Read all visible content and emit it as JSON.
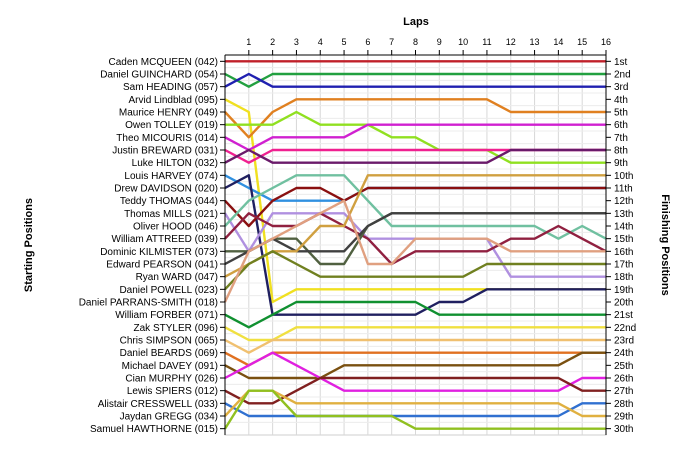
{
  "chart_data": {
    "type": "line",
    "title": "",
    "xlabel": "Laps",
    "ylabel_left": "Starting Positions",
    "ylabel_right": "Finishing Positions",
    "x": [
      0,
      1,
      2,
      3,
      4,
      5,
      6,
      7,
      8,
      9,
      10,
      11,
      12,
      13,
      14,
      15,
      16
    ],
    "x_tick_labels": [
      "1",
      "2",
      "3",
      "4",
      "5",
      "6",
      "7",
      "8",
      "9",
      "10",
      "11",
      "12",
      "13",
      "14",
      "15",
      "16"
    ],
    "finishing_labels": [
      "1st",
      "2nd",
      "3rd",
      "4th",
      "5th",
      "6th",
      "7th",
      "8th",
      "9th",
      "10th",
      "11th",
      "12th",
      "13th",
      "14th",
      "15th",
      "16th",
      "17th",
      "18th",
      "19th",
      "20th",
      "21st",
      "22nd",
      "23rd",
      "24th",
      "25th",
      "26th",
      "27th",
      "28th",
      "29th",
      "30th"
    ],
    "ylim": [
      1,
      30
    ],
    "grid": true,
    "series": [
      {
        "name": "Caden MCQUEEN (042)",
        "color": "#c0202a",
        "values": [
          1,
          1,
          1,
          1,
          1,
          1,
          1,
          1,
          1,
          1,
          1,
          1,
          1,
          1,
          1,
          1,
          1
        ]
      },
      {
        "name": "Daniel GUINCHARD (054)",
        "color": "#22a040",
        "values": [
          2,
          3,
          2,
          2,
          2,
          2,
          2,
          2,
          2,
          2,
          2,
          2,
          2,
          2,
          2,
          2,
          2
        ]
      },
      {
        "name": "Sam HEADING (057)",
        "color": "#2020b0",
        "values": [
          3,
          2,
          3,
          3,
          3,
          3,
          3,
          3,
          3,
          3,
          3,
          3,
          3,
          3,
          3,
          3,
          3
        ]
      },
      {
        "name": "Arvid Lindblad (095)",
        "color": "#f0e020",
        "values": [
          4,
          5,
          20,
          19,
          19,
          19,
          19,
          19,
          19,
          19,
          19,
          19,
          19,
          19,
          19,
          19,
          19
        ]
      },
      {
        "name": "Maurice HENRY (049)",
        "color": "#e08020",
        "values": [
          5,
          7,
          5,
          4,
          4,
          4,
          4,
          4,
          4,
          4,
          4,
          4,
          5,
          5,
          5,
          5,
          5
        ]
      },
      {
        "name": "Owen TOLLEY (019)",
        "color": "#90e020",
        "values": [
          6,
          6,
          6,
          5,
          6,
          6,
          6,
          7,
          7,
          8,
          8,
          8,
          9,
          9,
          9,
          9,
          9
        ]
      },
      {
        "name": "Theo MICOURIS (014)",
        "color": "#d020d0",
        "values": [
          7,
          8,
          7,
          7,
          7,
          7,
          6,
          6,
          6,
          6,
          6,
          6,
          6,
          6,
          6,
          6,
          6
        ]
      },
      {
        "name": "Justin BREWARD (031)",
        "color": "#f02090",
        "values": [
          8,
          9,
          8,
          8,
          8,
          8,
          8,
          8,
          8,
          8,
          8,
          8,
          8,
          8,
          8,
          8,
          8
        ]
      },
      {
        "name": "Luke HILTON (032)",
        "color": "#6a1a6a",
        "values": [
          9,
          8,
          9,
          9,
          9,
          9,
          9,
          9,
          9,
          9,
          9,
          9,
          8,
          8,
          8,
          8,
          8
        ]
      },
      {
        "name": "Louis HARVEY (074)",
        "color": "#3090e0",
        "values": [
          10,
          11,
          12,
          12,
          12,
          12,
          11,
          11,
          11,
          11,
          11,
          11,
          11,
          11,
          11,
          11,
          11
        ]
      },
      {
        "name": "Drew DAVIDSON (020)",
        "color": "#202060",
        "values": [
          11,
          10,
          21,
          21,
          21,
          21,
          21,
          21,
          21,
          20,
          20,
          19,
          19,
          19,
          19,
          19,
          19
        ]
      },
      {
        "name": "Teddy THOMAS (044)",
        "color": "#8a1010",
        "values": [
          12,
          14,
          12,
          11,
          11,
          12,
          11,
          11,
          11,
          11,
          11,
          11,
          11,
          11,
          11,
          11,
          11
        ]
      },
      {
        "name": "Thomas MILLS (021)",
        "color": "#b090e0",
        "values": [
          13,
          16,
          13,
          13,
          13,
          13,
          15,
          15,
          15,
          15,
          15,
          15,
          18,
          18,
          18,
          18,
          18
        ]
      },
      {
        "name": "Oliver HOOD (046)",
        "color": "#70c0a0",
        "values": [
          14,
          12,
          11,
          10,
          10,
          10,
          12,
          14,
          14,
          14,
          14,
          14,
          14,
          14,
          15,
          14,
          15
        ]
      },
      {
        "name": "William ATTREED (039)",
        "color": "#902040",
        "values": [
          15,
          13,
          14,
          14,
          13,
          14,
          15,
          17,
          16,
          16,
          16,
          16,
          15,
          15,
          14,
          15,
          16
        ]
      },
      {
        "name": "Dominic KILMISTER (073)",
        "color": "#506040",
        "values": [
          16,
          16,
          15,
          15,
          17,
          17,
          14,
          13,
          13,
          13,
          13,
          13,
          13,
          13,
          13,
          13,
          13
        ]
      },
      {
        "name": "Edward PEARSON (041)",
        "color": "#404040",
        "values": [
          17,
          16,
          15,
          16,
          16,
          16,
          14,
          13,
          13,
          13,
          13,
          13,
          13,
          13,
          13,
          13,
          13
        ]
      },
      {
        "name": "Ryan WARD (047)",
        "color": "#d0a040",
        "values": [
          18,
          17,
          16,
          16,
          14,
          14,
          10,
          10,
          10,
          10,
          10,
          10,
          10,
          10,
          10,
          10,
          10
        ]
      },
      {
        "name": "Daniel POWELL (023)",
        "color": "#708020",
        "values": [
          19,
          17,
          16,
          17,
          18,
          18,
          18,
          18,
          18,
          18,
          18,
          17,
          17,
          17,
          17,
          17,
          17
        ]
      },
      {
        "name": "Daniel PARRANS-SMITH (018)",
        "color": "#e0a080",
        "values": [
          20,
          16,
          15,
          14,
          13,
          12,
          17,
          17,
          15,
          15,
          15,
          15,
          16,
          16,
          16,
          16,
          16
        ]
      },
      {
        "name": "William FORBER (071)",
        "color": "#109030",
        "values": [
          21,
          22,
          21,
          20,
          20,
          20,
          20,
          20,
          20,
          21,
          21,
          21,
          21,
          21,
          21,
          21,
          21
        ]
      },
      {
        "name": "Zak STYLER (096)",
        "color": "#f0e040",
        "values": [
          22,
          23,
          23,
          22,
          22,
          22,
          22,
          22,
          22,
          22,
          22,
          22,
          22,
          22,
          22,
          22,
          22
        ]
      },
      {
        "name": "Chris SIMPSON (065)",
        "color": "#f0c070",
        "values": [
          23,
          24,
          23,
          23,
          23,
          23,
          23,
          23,
          23,
          23,
          23,
          23,
          23,
          23,
          23,
          23,
          23
        ]
      },
      {
        "name": "Daniel BEARDS (069)",
        "color": "#e07020",
        "values": [
          24,
          25,
          24,
          24,
          24,
          24,
          24,
          24,
          24,
          24,
          24,
          24,
          24,
          24,
          24,
          24,
          24
        ]
      },
      {
        "name": "Michael DAVEY (091)",
        "color": "#7a5010",
        "values": [
          25,
          26,
          26,
          26,
          26,
          25,
          25,
          25,
          25,
          25,
          25,
          25,
          25,
          25,
          25,
          24,
          24
        ]
      },
      {
        "name": "Cian MURPHY (026)",
        "color": "#e020e0",
        "values": [
          26,
          25,
          24,
          25,
          26,
          27,
          27,
          27,
          27,
          27,
          27,
          27,
          27,
          27,
          27,
          26,
          26
        ]
      },
      {
        "name": "Lewis SPIERS (012)",
        "color": "#802020",
        "values": [
          27,
          28,
          28,
          27,
          26,
          26,
          26,
          26,
          26,
          26,
          26,
          26,
          26,
          26,
          26,
          27,
          27
        ]
      },
      {
        "name": "Alistair CRESSWELL (033)",
        "color": "#3070d0",
        "values": [
          28,
          29,
          29,
          29,
          29,
          29,
          29,
          29,
          29,
          29,
          29,
          29,
          29,
          29,
          29,
          28,
          28
        ]
      },
      {
        "name": "Jaydan GREGG (034)",
        "color": "#e0b040",
        "values": [
          29,
          27,
          27,
          28,
          28,
          28,
          28,
          28,
          28,
          28,
          28,
          28,
          28,
          28,
          28,
          29,
          29
        ]
      },
      {
        "name": "Samuel HAWTHORNE (015)",
        "color": "#90c020",
        "values": [
          30,
          27,
          27,
          29,
          29,
          29,
          29,
          29,
          30,
          30,
          30,
          30,
          30,
          30,
          30,
          30,
          30
        ]
      }
    ]
  }
}
